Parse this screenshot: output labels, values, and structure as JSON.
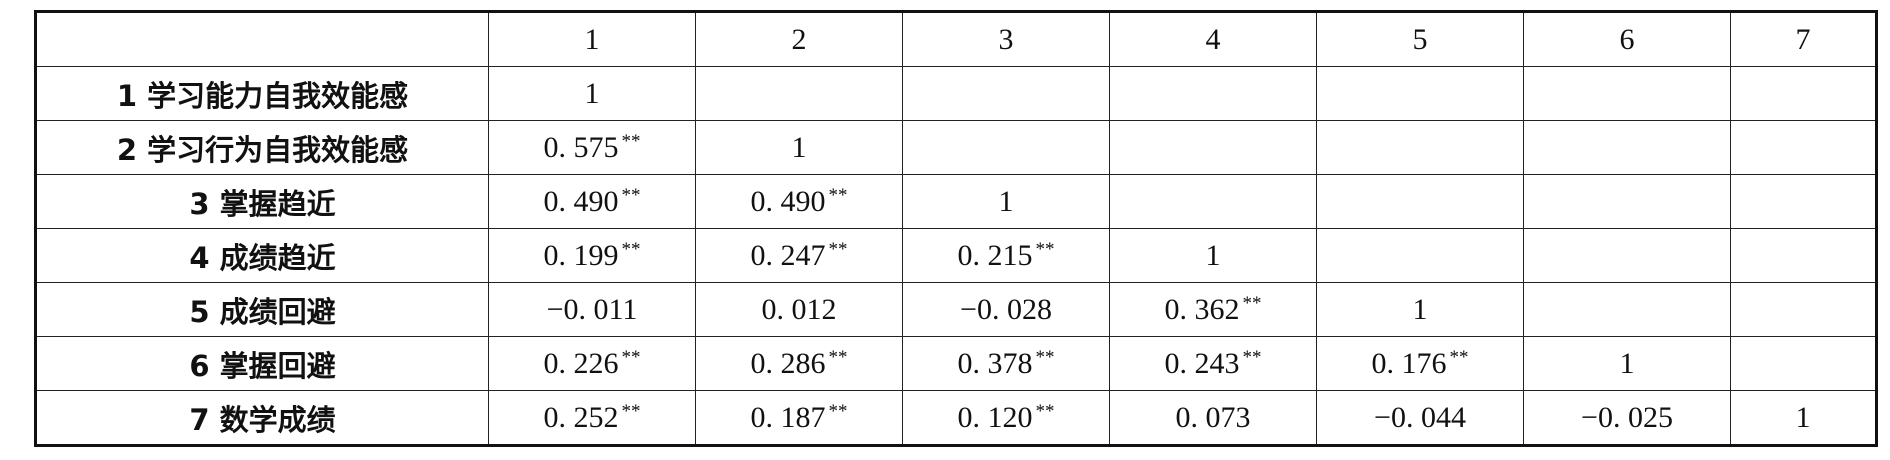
{
  "table": {
    "header": [
      "1",
      "2",
      "3",
      "4",
      "5",
      "6",
      "7"
    ],
    "rows": [
      {
        "label": "1 学习能力自我效能感",
        "cells": [
          {
            "value": "1"
          }
        ]
      },
      {
        "label": "2 学习行为自我效能感",
        "cells": [
          {
            "value": "0. 575",
            "sig": "**"
          },
          {
            "value": "1"
          }
        ]
      },
      {
        "label": "3 掌握趋近",
        "cells": [
          {
            "value": "0. 490",
            "sig": "**"
          },
          {
            "value": "0. 490",
            "sig": "**"
          },
          {
            "value": "1"
          }
        ]
      },
      {
        "label": "4 成绩趋近",
        "cells": [
          {
            "value": "0. 199",
            "sig": "**"
          },
          {
            "value": "0. 247",
            "sig": "**"
          },
          {
            "value": "0. 215",
            "sig": "**"
          },
          {
            "value": "1"
          }
        ]
      },
      {
        "label": "5 成绩回避",
        "cells": [
          {
            "value": "−0. 011"
          },
          {
            "value": "0. 012"
          },
          {
            "value": "−0. 028"
          },
          {
            "value": "0. 362",
            "sig": "**"
          },
          {
            "value": "1"
          }
        ]
      },
      {
        "label": "6 掌握回避",
        "cells": [
          {
            "value": "0. 226",
            "sig": "**"
          },
          {
            "value": "0. 286",
            "sig": "**"
          },
          {
            "value": "0. 378",
            "sig": "**"
          },
          {
            "value": "0. 243",
            "sig": "**"
          },
          {
            "value": "0. 176",
            "sig": "**"
          },
          {
            "value": "1"
          }
        ]
      },
      {
        "label": "7 数学成绩",
        "cells": [
          {
            "value": "0. 252",
            "sig": "**"
          },
          {
            "value": "0. 187",
            "sig": "**"
          },
          {
            "value": "0. 120",
            "sig": "**"
          },
          {
            "value": "0. 073"
          },
          {
            "value": "−0. 044"
          },
          {
            "value": "−0. 025"
          },
          {
            "value": "1"
          }
        ]
      }
    ]
  }
}
